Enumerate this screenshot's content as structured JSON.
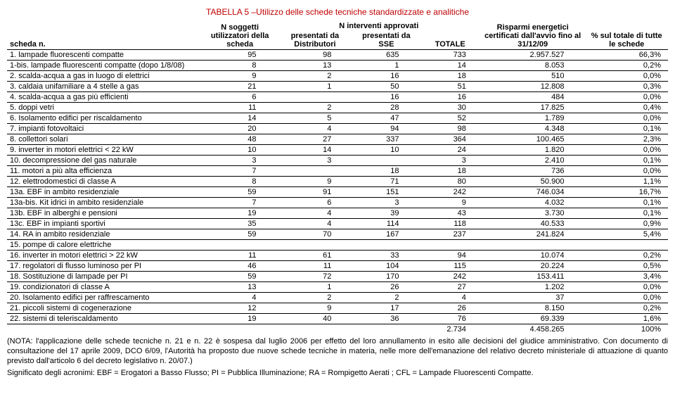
{
  "title": "TABELLA 5 –Utilizzo delle schede tecniche standardizzate e analitiche",
  "headers": {
    "scheda": "scheda n.",
    "soggetti": "N soggetti utilizzatori della scheda",
    "interventi_group": "N interventi approvati",
    "distributori": "presentati da Distributori",
    "sse": "presentati da SSE",
    "totale": "TOTALE",
    "risparmi": "Risparmi energetici certificati dall'avvio fino al 31/12/09",
    "percento": "% sul totale di tutte le schede"
  },
  "rows": [
    {
      "name": "1. lampade fluorescenti compatte",
      "c1": "95",
      "c2": "98",
      "c3": "635",
      "c4": "733",
      "c5": "2.957.527",
      "c6": "66,3%"
    },
    {
      "name": "1-bis. lampade fluorescenti compatte (dopo 1/8/08)",
      "c1": "8",
      "c2": "13",
      "c3": "1",
      "c4": "14",
      "c5": "8.053",
      "c6": "0,2%"
    },
    {
      "name": "2. scalda-acqua a gas in luogo di elettrici",
      "c1": "9",
      "c2": "2",
      "c3": "16",
      "c4": "18",
      "c5": "510",
      "c6": "0,0%"
    },
    {
      "name": "3. caldaia unifamiliare a 4 stelle a gas",
      "c1": "21",
      "c2": "1",
      "c3": "50",
      "c4": "51",
      "c5": "12.808",
      "c6": "0,3%"
    },
    {
      "name": "4. scalda-acqua a gas più efficienti",
      "c1": "6",
      "c2": "",
      "c3": "16",
      "c4": "16",
      "c5": "484",
      "c6": "0,0%"
    },
    {
      "name": "5. doppi vetri",
      "c1": "11",
      "c2": "2",
      "c3": "28",
      "c4": "30",
      "c5": "17.825",
      "c6": "0,4%"
    },
    {
      "name": "6. Isolamento edifici per riscaldamento",
      "c1": "14",
      "c2": "5",
      "c3": "47",
      "c4": "52",
      "c5": "1.789",
      "c6": "0,0%"
    },
    {
      "name": "7. impianti fotovoltaici",
      "c1": "20",
      "c2": "4",
      "c3": "94",
      "c4": "98",
      "c5": "4.348",
      "c6": "0,1%"
    },
    {
      "name": "8. collettori solari",
      "c1": "48",
      "c2": "27",
      "c3": "337",
      "c4": "364",
      "c5": "100.465",
      "c6": "2,3%"
    },
    {
      "name": "9. inverter in motori elettrici < 22 kW",
      "c1": "10",
      "c2": "14",
      "c3": "10",
      "c4": "24",
      "c5": "1.820",
      "c6": "0,0%"
    },
    {
      "name": "10. decompressione del gas naturale",
      "c1": "3",
      "c2": "3",
      "c3": "",
      "c4": "3",
      "c5": "2.410",
      "c6": "0,1%"
    },
    {
      "name": "11. motori a più alta efficienza",
      "c1": "7",
      "c2": "",
      "c3": "18",
      "c4": "18",
      "c5": "736",
      "c6": "0,0%"
    },
    {
      "name": "12. elettrodomestici di classe A",
      "c1": "8",
      "c2": "9",
      "c3": "71",
      "c4": "80",
      "c5": "50.900",
      "c6": "1,1%"
    },
    {
      "name": "13a. EBF in ambito residenziale",
      "c1": "59",
      "c2": "91",
      "c3": "151",
      "c4": "242",
      "c5": "746.034",
      "c6": "16,7%"
    },
    {
      "name": "13a-bis. Kit idrici in ambito residenziale",
      "c1": "7",
      "c2": "6",
      "c3": "3",
      "c4": "9",
      "c5": "4.032",
      "c6": "0,1%"
    },
    {
      "name": "13b. EBF in alberghi e pensioni",
      "c1": "19",
      "c2": "4",
      "c3": "39",
      "c4": "43",
      "c5": "3.730",
      "c6": "0,1%"
    },
    {
      "name": "13c. EBF in impianti sportivi",
      "c1": "35",
      "c2": "4",
      "c3": "114",
      "c4": "118",
      "c5": "40.533",
      "c6": "0,9%"
    },
    {
      "name": "14. RA in ambito residenziale",
      "c1": "59",
      "c2": "70",
      "c3": "167",
      "c4": "237",
      "c5": "241.824",
      "c6": "5,4%"
    },
    {
      "name": "15. pompe di calore elettriche",
      "c1": "",
      "c2": "",
      "c3": "",
      "c4": "",
      "c5": "",
      "c6": ""
    },
    {
      "name": "16. inverter in motori elettrici > 22 kW",
      "c1": "11",
      "c2": "61",
      "c3": "33",
      "c4": "94",
      "c5": "10.074",
      "c6": "0,2%"
    },
    {
      "name": "17. regolatori di flusso luminoso per PI",
      "c1": "46",
      "c2": "11",
      "c3": "104",
      "c4": "115",
      "c5": "20.224",
      "c6": "0,5%"
    },
    {
      "name": "18. Sostituzione di lampade per PI",
      "c1": "59",
      "c2": "72",
      "c3": "170",
      "c4": "242",
      "c5": "153.411",
      "c6": "3,4%"
    },
    {
      "name": "19. condizionatori di classe A",
      "c1": "13",
      "c2": "1",
      "c3": "26",
      "c4": "27",
      "c5": "1.202",
      "c6": "0,0%"
    },
    {
      "name": "20. Isolamento edifici per raffrescamento",
      "c1": "4",
      "c2": "2",
      "c3": "2",
      "c4": "4",
      "c5": "37",
      "c6": "0,0%"
    },
    {
      "name": "21. piccoli sistemi di cogenerazione",
      "c1": "12",
      "c2": "9",
      "c3": "17",
      "c4": "26",
      "c5": "8.150",
      "c6": "0,2%"
    },
    {
      "name": "22. sistemi di teleriscaldamento",
      "c1": "19",
      "c2": "40",
      "c3": "36",
      "c4": "76",
      "c5": "69.339",
      "c6": "1,6%"
    }
  ],
  "total": {
    "c4": "2.734",
    "c5": "4.458.265",
    "c6": "100%"
  },
  "footnote1": "(NOTA: l'applicazione delle schede tecniche n. 21 e n. 22 è sospesa dal luglio 2006 per effetto del loro annullamento in esito alle decisioni del giudice amministrativo. Con documento di consultazione del 17 aprile 2009, DCO 6/09, l'Autorità ha proposto due nuove schede tecniche in materia, nelle more dell'emanazione del relativo decreto ministeriale di attuazione di quanto previsto dall'articolo 6 del decreto legislativo n. 20/07.)",
  "footnote2": "Significato degli acronimi: EBF = Erogatori a Basso Flusso; PI = Pubblica Illuminazione; RA = Rompigetto Aerati ; CFL = Lampade Fluorescenti Compatte."
}
